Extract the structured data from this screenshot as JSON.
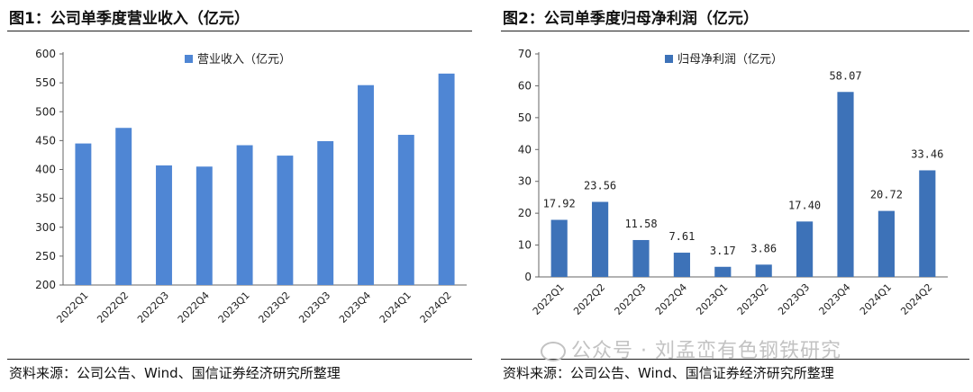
{
  "watermark": "公众号 · 刘孟峦有色钢铁研究",
  "charts": [
    {
      "figure_title": "图1：公司单季度营业收入（亿元）",
      "source": "资料来源：公司公告、Wind、国信证券经济研究所整理",
      "chart_data": {
        "type": "bar",
        "categories": [
          "2022Q1",
          "2022Q2",
          "2022Q3",
          "2022Q4",
          "2023Q1",
          "2023Q2",
          "2023Q3",
          "2023Q4",
          "2024Q1",
          "2024Q2"
        ],
        "series": [
          {
            "name": "营业收入（亿元）",
            "values": [
              445,
              472,
              407,
              405,
              442,
              424,
              449,
              546,
              460,
              566
            ],
            "color": "#4F86D4"
          }
        ],
        "yticks": [
          "200",
          "250",
          "300",
          "350",
          "400",
          "450",
          "500",
          "550",
          "600"
        ],
        "ylim": [
          200,
          600
        ],
        "show_data_labels": false,
        "legend_position": "top-center",
        "grid": false
      }
    },
    {
      "figure_title": "图2：公司单季度归母净利润（亿元）",
      "source": "资料来源：公司公告、Wind、国信证券经济研究所整理",
      "chart_data": {
        "type": "bar",
        "categories": [
          "2022Q1",
          "2022Q2",
          "2022Q3",
          "2022Q4",
          "2023Q1",
          "2023Q2",
          "2023Q3",
          "2023Q4",
          "2024Q1",
          "2024Q2"
        ],
        "series": [
          {
            "name": "归母净利润（亿元）",
            "values": [
              17.92,
              23.56,
              11.58,
              7.61,
              3.17,
              3.86,
              17.4,
              58.07,
              20.72,
              33.46
            ],
            "color": "#3D72B8"
          }
        ],
        "data_labels": [
          "17.92",
          "23.56",
          "11.58",
          "7.61",
          "3.17",
          "3.86",
          "17.40",
          "58.07",
          "20.72",
          "33.46"
        ],
        "yticks": [
          "0",
          "10",
          "20",
          "30",
          "40",
          "50",
          "60",
          "70"
        ],
        "ylim": [
          0,
          70
        ],
        "show_data_labels": true,
        "legend_position": "top-center",
        "grid": false
      }
    }
  ]
}
